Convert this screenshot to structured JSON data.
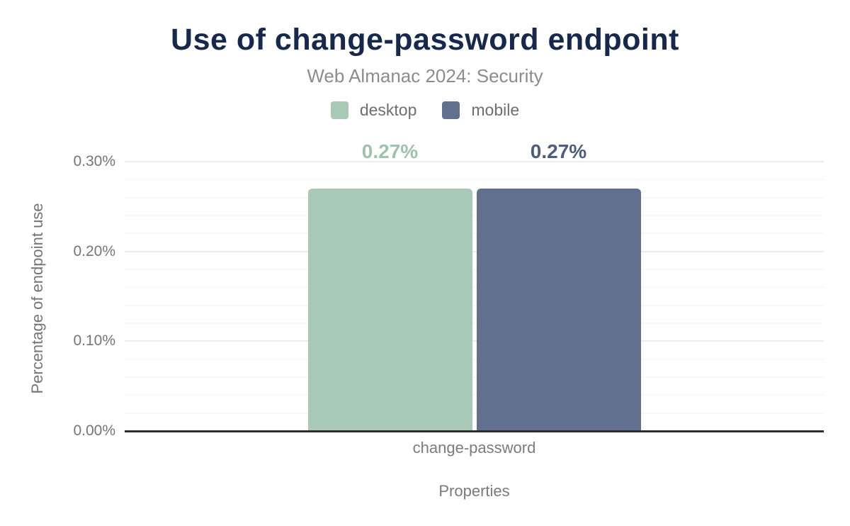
{
  "header": {
    "title": "Use of change-password endpoint",
    "subtitle": "Web Almanac 2024: Security"
  },
  "chart_data": {
    "type": "bar",
    "title": "Use of change-password endpoint",
    "subtitle": "Web Almanac 2024: Security",
    "categories": [
      "change-password"
    ],
    "series": [
      {
        "name": "desktop",
        "values": [
          0.27
        ],
        "value_labels": [
          "0.27%"
        ],
        "color": "#a8c9b6",
        "label_color": "#9dc2ae"
      },
      {
        "name": "mobile",
        "values": [
          0.27
        ],
        "value_labels": [
          "0.27%"
        ],
        "color": "#61708e",
        "label_color": "#4e5d7b"
      }
    ],
    "xlabel": "Properties",
    "ylabel": "Percentage of endpoint use",
    "ylim": [
      0,
      0.3
    ],
    "yticks": [
      {
        "label": "0.30%",
        "value": 0.3
      },
      {
        "label": "0.20%",
        "value": 0.2
      },
      {
        "label": "0.10%",
        "value": 0.1
      },
      {
        "label": "0.00%",
        "value": 0.0
      }
    ],
    "grid": {
      "on": true,
      "minor_step": 0.02,
      "major_step": 0.1
    },
    "legend_position": "top",
    "colors": {
      "title": "#16294c",
      "subtitle": "#8c8c8c",
      "axis_text": "#757575",
      "axis_line": "#2e2e2e",
      "gridline_minor": "#f7f7f7",
      "gridline_major": "#ececec",
      "background": "#ffffff"
    }
  }
}
